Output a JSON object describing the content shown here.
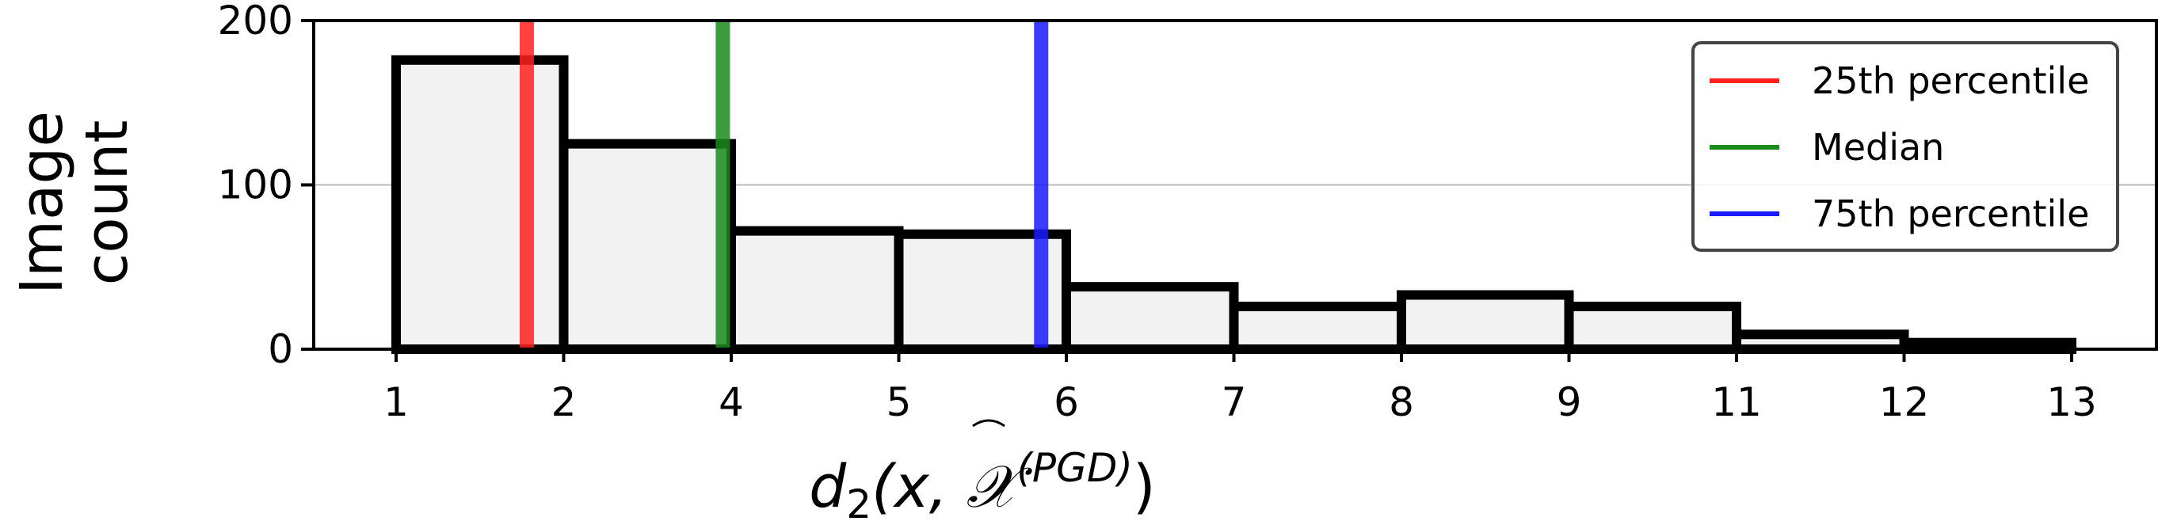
{
  "chart_data": {
    "type": "bar",
    "ylabel_lines": [
      "Image",
      "count"
    ],
    "xlabel": {
      "main": "d",
      "subscript": "2",
      "open": "(x, ",
      "symbol": "𝒳",
      "superscript": "(PGD)",
      "close": ")"
    },
    "x_tick_labels": [
      "1",
      "2",
      "4",
      "5",
      "6",
      "7",
      "8",
      "9",
      "11",
      "12",
      "13"
    ],
    "y_ticks": [
      0,
      100,
      200
    ],
    "ylim": [
      0,
      200
    ],
    "bins": [
      {
        "count": 176
      },
      {
        "count": 125
      },
      {
        "count": 72
      },
      {
        "count": 70
      },
      {
        "count": 38
      },
      {
        "count": 26
      },
      {
        "count": 33
      },
      {
        "count": 26
      },
      {
        "count": 9
      },
      {
        "count": 4
      }
    ],
    "percentile_lines": [
      {
        "name": "25th percentile",
        "position": 0.78,
        "color": "#ff2020"
      },
      {
        "name": "Median",
        "position": 1.95,
        "color": "#1a8a1a"
      },
      {
        "name": "75th percentile",
        "position": 3.85,
        "color": "#1a1aff"
      }
    ],
    "grid": "horizontal",
    "legend_position": "top-right",
    "bar_fill": "#f2f2f2",
    "bar_edge": "#000000"
  }
}
